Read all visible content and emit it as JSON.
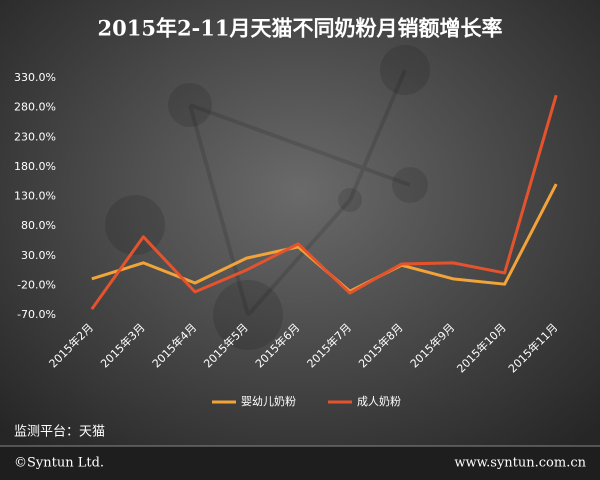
{
  "chart_data": {
    "type": "line",
    "title": "2015年2-11月天猫不同奶粉月销额增长率",
    "categories": [
      "2015年2月",
      "2015年3月",
      "2015年4月",
      "2015年5月",
      "2015年6月",
      "2015年7月",
      "2015年8月",
      "2015年9月",
      "2015年10月",
      "2015年11月"
    ],
    "series": [
      {
        "name": "婴幼儿奶粉",
        "color": "#f2a43a",
        "values": [
          -9,
          18,
          -16,
          26,
          45,
          -30,
          14,
          -9,
          -18,
          151
        ]
      },
      {
        "name": "成人奶粉",
        "color": "#e5532d",
        "values": [
          -60,
          62,
          -31,
          6,
          50,
          -33,
          16,
          18,
          1,
          301
        ]
      }
    ],
    "ylim": [
      -70,
      330
    ],
    "yticks": [
      {
        "value": 330,
        "label": "330.0%"
      },
      {
        "value": 280,
        "label": "280.0%"
      },
      {
        "value": 230,
        "label": "230.0%"
      },
      {
        "value": 180,
        "label": "180.0%"
      },
      {
        "value": 130,
        "label": "130.0%"
      },
      {
        "value": 80,
        "label": "80.0%"
      },
      {
        "value": 30,
        "label": "30.0%"
      },
      {
        "value": -20,
        "label": "-20.0%"
      },
      {
        "value": -70,
        "label": "-70.0%"
      }
    ],
    "legend": "bottom"
  },
  "footer": {
    "platform": "监测平台：天猫",
    "copyright": "©Syntun Ltd.",
    "website": "www.syntun.com.cn"
  }
}
